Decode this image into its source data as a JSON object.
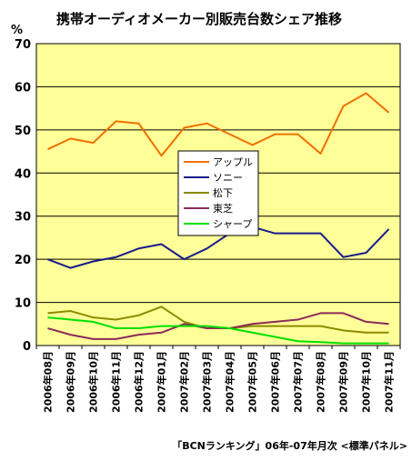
{
  "chart_data": {
    "type": "line",
    "title": "携帯オーディオメーカー別販売台数シェア推移",
    "unit_label": "%",
    "source": "「BCNランキング」06年-07年月次 <標準パネル>",
    "ylim": [
      0,
      70
    ],
    "y_ticks": [
      0,
      10,
      20,
      30,
      40,
      50,
      60,
      70
    ],
    "grid": true,
    "legend_position": "center",
    "categories": [
      "2006年08月",
      "2006年09月",
      "2006年10月",
      "2006年11月",
      "2006年12月",
      "2007年01月",
      "2007年02月",
      "2007年03月",
      "2007年04月",
      "2007年05月",
      "2007年06月",
      "2007年07月",
      "2007年08月",
      "2007年09月",
      "2007年10月",
      "2007年11月"
    ],
    "series": [
      {
        "name": "アップル",
        "color": "#f07000",
        "values": [
          45.5,
          48,
          47,
          52,
          51.5,
          44,
          50.5,
          51.5,
          49,
          46.5,
          49,
          49,
          44.5,
          55.5,
          58.5,
          54
        ]
      },
      {
        "name": "ソニー",
        "color": "#1a1a8c",
        "values": [
          20,
          18,
          19.5,
          20.5,
          22.5,
          23.5,
          20,
          22.5,
          26,
          27.5,
          26,
          26,
          26,
          20.5,
          21.5,
          27
        ]
      },
      {
        "name": "松下",
        "color": "#8a8a00",
        "values": [
          7.5,
          8,
          6.5,
          6,
          7,
          9,
          5.5,
          4,
          4,
          4.5,
          4.5,
          4.5,
          4.5,
          3.5,
          3,
          3
        ]
      },
      {
        "name": "東芝",
        "color": "#8b2a5a",
        "values": [
          4,
          2.5,
          1.5,
          1.5,
          2.5,
          3,
          5,
          4,
          4,
          5,
          5.5,
          6,
          7.5,
          7.5,
          5.5,
          5
        ]
      },
      {
        "name": "シャープ",
        "color": "#00e000",
        "values": [
          6.5,
          6,
          5.5,
          4,
          4,
          4.5,
          4.5,
          4.5,
          4,
          3,
          2,
          1,
          0.8,
          0.5,
          0.5,
          0.5
        ]
      }
    ]
  }
}
